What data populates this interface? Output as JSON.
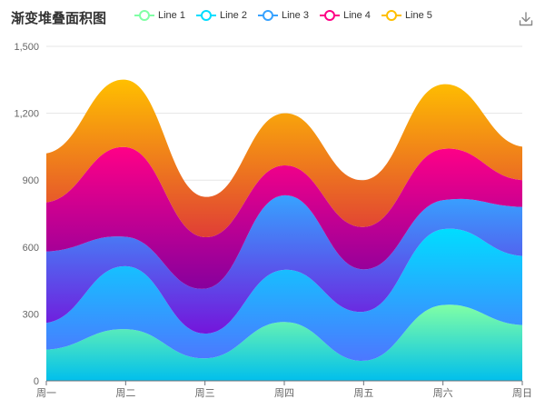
{
  "chart_data": {
    "type": "area",
    "stacked": true,
    "smooth": true,
    "title": "渐变堆叠面积图",
    "categories": [
      "周一",
      "周二",
      "周三",
      "周四",
      "周五",
      "周六",
      "周日"
    ],
    "ylim": [
      0,
      1500
    ],
    "yticks": [
      0,
      300,
      600,
      900,
      1200,
      1500
    ],
    "ytick_labels": [
      "0",
      "300",
      "600",
      "900",
      "1,200",
      "1,500"
    ],
    "grid": true,
    "legend_position": "top",
    "series": [
      {
        "name": "Line 1",
        "values": [
          140,
          232,
          101,
          264,
          90,
          340,
          250
        ],
        "color_top": "#80FFA5",
        "color_bottom": "#01BFEC"
      },
      {
        "name": "Line 2",
        "values": [
          120,
          282,
          111,
          234,
          220,
          340,
          310
        ],
        "color_top": "#00DDFF",
        "color_bottom": "#4D77FF"
      },
      {
        "name": "Line 3",
        "values": [
          320,
          132,
          201,
          334,
          190,
          130,
          220
        ],
        "color_top": "#37A2FF",
        "color_bottom": "#7415DB"
      },
      {
        "name": "Line 4",
        "values": [
          220,
          402,
          231,
          134,
          190,
          230,
          120
        ],
        "color_top": "#FF0087",
        "color_bottom": "#87009D"
      },
      {
        "name": "Line 5",
        "values": [
          220,
          302,
          181,
          234,
          210,
          290,
          150
        ],
        "color_top": "#FFBF00",
        "color_bottom": "#E03E36"
      }
    ],
    "legend_colors": [
      "#80FFA5",
      "#00DDFF",
      "#37A2FF",
      "#FF0087",
      "#FFBF00"
    ]
  },
  "toolbar": {
    "download_icon": "download-icon"
  }
}
